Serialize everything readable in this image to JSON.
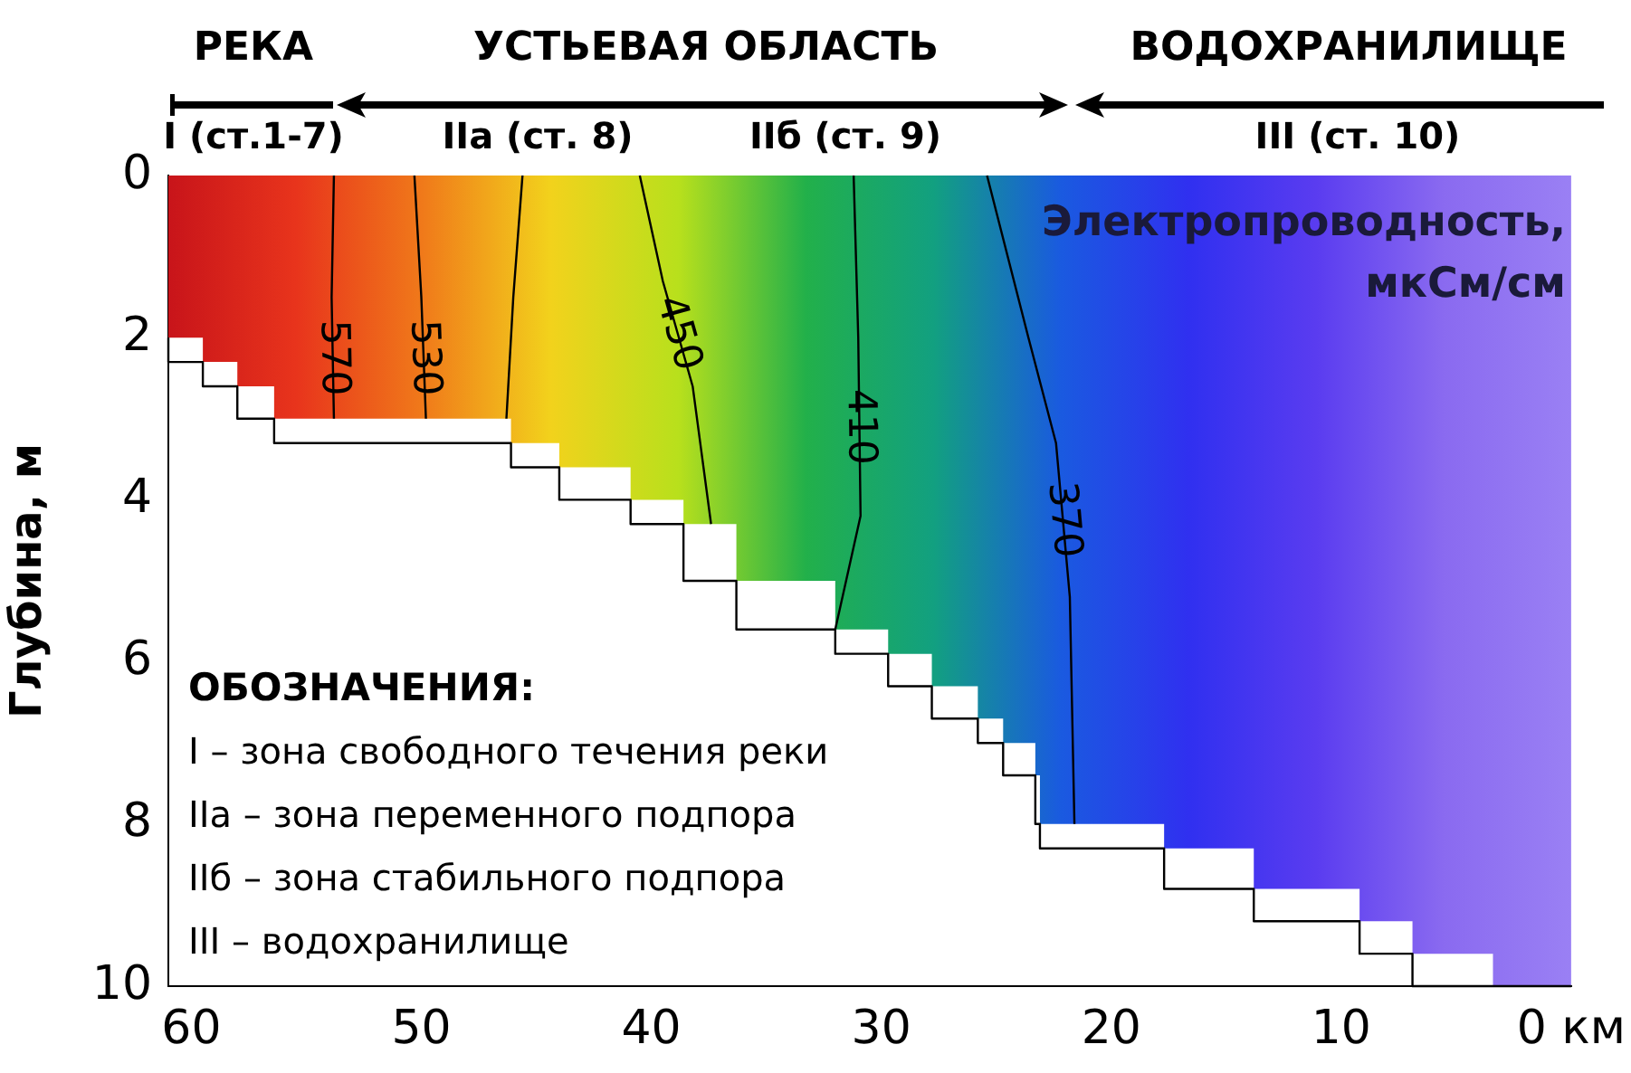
{
  "chart_data": {
    "type": "line",
    "title": "Электропроводность, мкСм/см",
    "ylabel": "Глубина, м",
    "xlim": [
      61,
      0
    ],
    "ylim": [
      10,
      0
    ],
    "xticks": [
      60,
      50,
      40,
      30,
      20,
      10,
      {
        "value": 0,
        "label": "0 км"
      }
    ],
    "yticks": [
      0,
      2,
      4,
      6,
      8,
      10
    ],
    "grid": false,
    "legend": false,
    "marker": "none",
    "annotations": [
      "РЕКА",
      "УСТЬЕВАЯ ОБЛАСТЬ",
      "ВОДОХРАНИЛИЩЕ",
      "I (ст.1-7)",
      "IIа (ст. 8)",
      "IIб (ст. 9)",
      "III (ст. 10)",
      "ОБОЗНАЧЕНИЯ:",
      "I – зона свободного течения реки",
      "IIа – зона переменного подпора",
      "IIб – зона стабильного подпора",
      "III – водохранилище"
    ],
    "series": [
      {
        "type": "step",
        "color": "#000000",
        "x": [
          61,
          59.5,
          58,
          56.4,
          46.1,
          44,
          40.9,
          38.6,
          36.3,
          32,
          29.7,
          27.8,
          25.8,
          24.7,
          23.3,
          23.1,
          17.7,
          13.8,
          9.2,
          6.9,
          3.4,
          0
        ],
        "values": [
          2,
          2.3,
          2.6,
          3,
          3.3,
          3.6,
          4,
          4.3,
          5,
          5.6,
          5.9,
          6.3,
          6.7,
          7,
          7.4,
          8,
          8.3,
          8.8,
          9.2,
          9.6,
          10,
          10
        ]
      },
      {
        "name": "570",
        "color": "#000000",
        "x": [
          53.8,
          53.9,
          53.8
        ],
        "values": [
          0,
          1.5,
          3
        ]
      },
      {
        "name": "530",
        "color": "#000000",
        "x": [
          50.3,
          50,
          49.8
        ],
        "values": [
          0,
          1.5,
          3
        ]
      },
      {
        "color": "#000000",
        "x": [
          45.6,
          46,
          46.3
        ],
        "values": [
          0,
          1.5,
          3
        ]
      },
      {
        "name": "450",
        "color": "#000000",
        "x": [
          40.5,
          39.5,
          38.2,
          37.4
        ],
        "values": [
          0,
          1.3,
          2.6,
          4.3
        ]
      },
      {
        "name": "410",
        "color": "#000000",
        "x": [
          31.2,
          31,
          30.9,
          32
        ],
        "values": [
          0,
          2,
          4.2,
          5.6
        ]
      },
      {
        "name": "370",
        "color": "#000000",
        "x": [
          25.4,
          23.6,
          22.4,
          21.8,
          21.6
        ],
        "values": [
          0,
          2,
          3.3,
          5.2,
          8
        ]
      }
    ]
  }
}
